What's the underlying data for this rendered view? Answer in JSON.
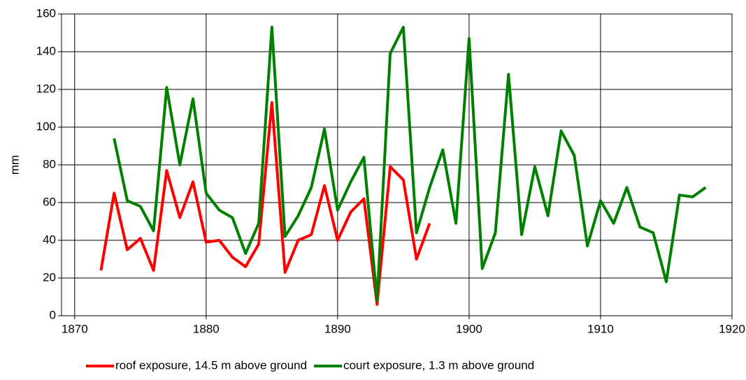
{
  "chart_data": {
    "type": "line",
    "y_label": "mm",
    "x": [
      1872,
      1873,
      1874,
      1875,
      1876,
      1877,
      1878,
      1879,
      1880,
      1881,
      1882,
      1883,
      1884,
      1885,
      1886,
      1887,
      1888,
      1889,
      1890,
      1891,
      1892,
      1893,
      1894,
      1895,
      1896,
      1897,
      1898,
      1899,
      1900,
      1901,
      1902,
      1903,
      1904,
      1905,
      1906,
      1907,
      1908,
      1909,
      1910,
      1911,
      1912,
      1913,
      1914,
      1915,
      1916,
      1917,
      1918
    ],
    "series": [
      {
        "name": "roof exposure, 14.5 m above ground",
        "color": "#ff0000",
        "values": [
          24,
          65,
          35,
          41,
          24,
          77,
          52,
          71,
          39,
          40,
          31,
          26,
          38,
          113,
          23,
          40,
          43,
          69,
          40,
          55,
          62,
          6,
          79,
          72,
          30,
          49,
          null,
          null,
          null,
          null,
          null,
          null,
          null,
          null,
          null,
          null,
          null,
          null,
          null,
          null,
          null,
          null,
          null,
          null,
          null,
          null,
          null
        ]
      },
      {
        "name": "court exposure, 1.3 m above ground",
        "color": "#008000",
        "values": [
          null,
          94,
          61,
          58,
          45,
          121,
          80,
          115,
          65,
          56,
          52,
          33,
          49,
          153,
          42,
          53,
          68,
          99,
          56,
          71,
          84,
          8,
          139,
          153,
          44,
          68,
          88,
          49,
          147,
          25,
          44,
          128,
          43,
          79,
          53,
          98,
          85,
          37,
          61,
          49,
          68,
          47,
          44,
          18,
          64,
          63,
          68
        ]
      }
    ],
    "xlim": [
      1869,
      1920
    ],
    "xticks": [
      1870,
      1880,
      1890,
      1900,
      1910,
      1920
    ],
    "ylim": [
      0,
      160
    ],
    "yticks": [
      0,
      20,
      40,
      60,
      80,
      100,
      120,
      140,
      160
    ],
    "grid": true
  }
}
